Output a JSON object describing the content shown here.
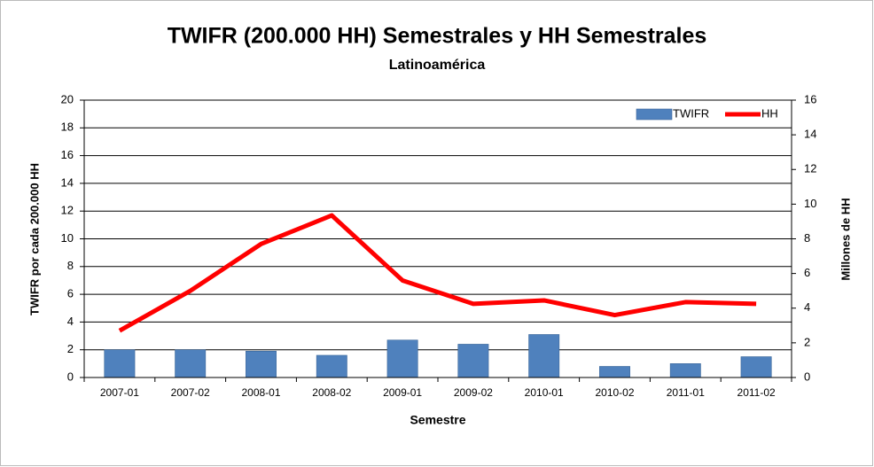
{
  "chart_data": {
    "type": "bar_line",
    "title": "TWIFR (200.000 HH) Semestrales y HH Semestrales",
    "subtitle": "Latinoamérica",
    "x_label": "Semestre",
    "y_label": "TWIFR por cada  200.000 HH",
    "y2_label": "Millones de HH",
    "categories": [
      "2007-01",
      "2007-02",
      "2008-01",
      "2008-02",
      "2009-01",
      "2009-02",
      "2010-01",
      "2010-02",
      "2011-01",
      "2011-02"
    ],
    "series": [
      {
        "name": "TWIFR",
        "type": "bar",
        "color": "#4f81bd",
        "values": [
          2.0,
          2.0,
          1.9,
          1.6,
          2.7,
          2.4,
          3.1,
          0.8,
          1.0,
          1.5
        ]
      },
      {
        "name": "HH",
        "type": "line",
        "axis": "y2",
        "color": "#ff0000",
        "values": [
          2.7,
          5.0,
          7.7,
          9.35,
          5.6,
          4.25,
          4.45,
          3.6,
          4.35,
          4.25
        ]
      }
    ],
    "ylim": [
      0,
      20
    ],
    "yticks": [
      0,
      2,
      4,
      6,
      8,
      10,
      12,
      14,
      16,
      18,
      20
    ],
    "y2lim": [
      0,
      16
    ],
    "y2ticks": [
      0,
      2,
      4,
      6,
      8,
      10,
      12,
      14,
      16
    ],
    "grid": true,
    "legend": "top-right"
  }
}
